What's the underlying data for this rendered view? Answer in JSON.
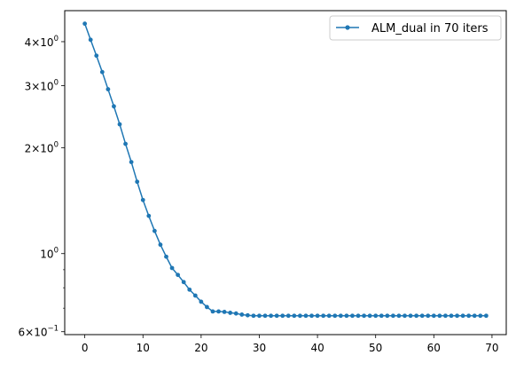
{
  "chart_data": {
    "type": "line",
    "title": "",
    "xlabel": "",
    "ylabel": "",
    "yscale": "log",
    "xlim": [
      -3.45,
      72.45
    ],
    "ylim": [
      0.5887,
      4.9
    ],
    "x_ticks": [
      0,
      10,
      20,
      30,
      40,
      50,
      60,
      70
    ],
    "y_major_ticks": [
      {
        "value": 0.6,
        "label_base": "6×10",
        "label_exp": "−1"
      },
      {
        "value": 1.0,
        "label_base": "10",
        "label_exp": "0"
      },
      {
        "value": 2.0,
        "label_base": "2×10",
        "label_exp": "0"
      },
      {
        "value": 3.0,
        "label_base": "3×10",
        "label_exp": "0"
      },
      {
        "value": 4.0,
        "label_base": "4×10",
        "label_exp": "0"
      }
    ],
    "y_minor_ticks": [
      0.7,
      0.8,
      0.9
    ],
    "legend": {
      "position": "top-right"
    },
    "series": [
      {
        "name": "ALM_dual in 70 iters",
        "color": "#1f77b4",
        "marker": "point",
        "x": [
          0,
          1,
          2,
          3,
          4,
          5,
          6,
          7,
          8,
          9,
          10,
          11,
          12,
          13,
          14,
          15,
          16,
          17,
          18,
          19,
          20,
          21,
          22,
          23,
          24,
          25,
          26,
          27,
          28,
          29,
          30,
          31,
          32,
          33,
          34,
          35,
          36,
          37,
          38,
          39,
          40,
          41,
          42,
          43,
          44,
          45,
          46,
          47,
          48,
          49,
          50,
          51,
          52,
          53,
          54,
          55,
          56,
          57,
          58,
          59,
          60,
          61,
          62,
          63,
          64,
          65,
          66,
          67,
          68,
          69
        ],
        "y": [
          4.5,
          4.05,
          3.65,
          3.28,
          2.93,
          2.62,
          2.33,
          2.05,
          1.82,
          1.6,
          1.42,
          1.28,
          1.16,
          1.06,
          0.98,
          0.91,
          0.87,
          0.83,
          0.79,
          0.76,
          0.73,
          0.705,
          0.685,
          0.685,
          0.683,
          0.679,
          0.676,
          0.671,
          0.668,
          0.666,
          0.666,
          0.666,
          0.666,
          0.666,
          0.666,
          0.666,
          0.666,
          0.666,
          0.666,
          0.666,
          0.666,
          0.666,
          0.666,
          0.666,
          0.666,
          0.666,
          0.666,
          0.666,
          0.666,
          0.666,
          0.666,
          0.666,
          0.666,
          0.666,
          0.666,
          0.666,
          0.666,
          0.666,
          0.666,
          0.666,
          0.666,
          0.666,
          0.666,
          0.666,
          0.666,
          0.666,
          0.666,
          0.666,
          0.666,
          0.666
        ]
      }
    ]
  }
}
